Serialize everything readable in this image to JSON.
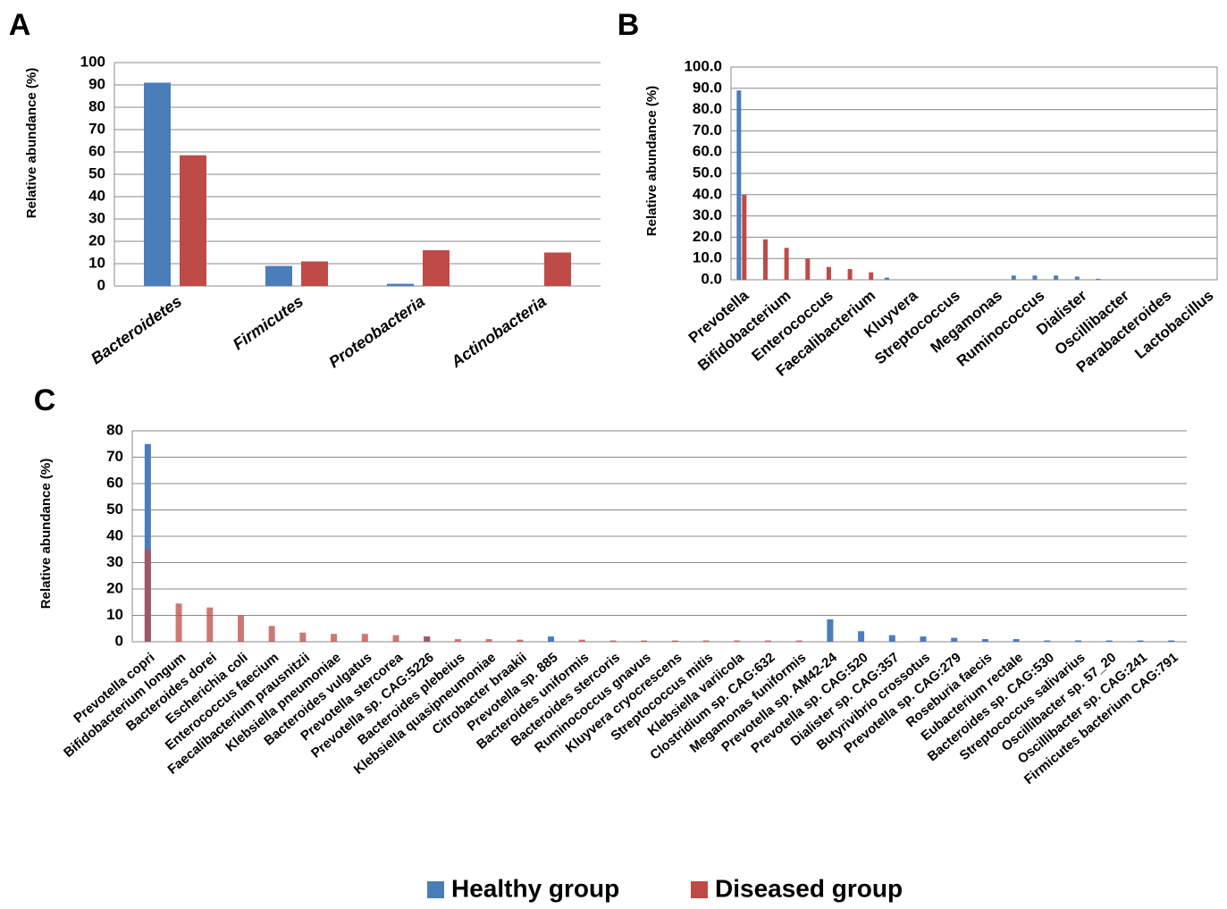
{
  "chart_data": [
    {
      "type": "bar",
      "panel": "A",
      "y_label": "Relative abundance (%)",
      "bar_mode": "grouped",
      "label_style": "italic",
      "categories": [
        "Bacteroidetes",
        "Firmicutes",
        "Proteobacteria",
        "Actinobacteria"
      ],
      "series": [
        {
          "name": "Healthy group",
          "color": "#4a7ebb",
          "values": [
            91,
            9,
            1,
            0
          ]
        },
        {
          "name": "Diseased group",
          "color": "#be4b48",
          "values": [
            58.5,
            11,
            16,
            15
          ]
        }
      ],
      "ylim": [
        0,
        100
      ],
      "yticks": [
        0,
        10,
        20,
        30,
        40,
        50,
        60,
        70,
        80,
        90,
        100
      ],
      "grid": true
    },
    {
      "type": "bar",
      "panel": "B",
      "y_label": "Relative abundance (%)",
      "bar_mode": "grouped",
      "label_style": "normal",
      "categories": [
        "Prevotella",
        null,
        "Bifidobacterium",
        null,
        "Enterococcus",
        null,
        "Faecalibacterium",
        null,
        "Kluyvera",
        null,
        "Streptococcus",
        null,
        "Megamonas",
        null,
        "Ruminococcus",
        null,
        "Dialister",
        null,
        "Oscillibacter",
        null,
        "Parabacteroides",
        null,
        "Lactobacillus"
      ],
      "series": [
        {
          "color": "#4a7ebb",
          "values": [
            89,
            0,
            0,
            0,
            0,
            0,
            0,
            1,
            0,
            0,
            0,
            0,
            0,
            2,
            2,
            2,
            1.5,
            0.5,
            0,
            0,
            0,
            0,
            0
          ]
        },
        {
          "color": "#be4b48",
          "values": [
            40,
            19,
            15,
            10,
            6,
            5,
            3.5,
            0,
            0,
            0,
            0,
            0,
            0,
            0,
            0,
            0,
            0,
            0,
            0,
            0,
            0,
            0,
            0
          ]
        }
      ],
      "ylim": [
        0,
        100
      ],
      "yticks": [
        {
          "value": 0,
          "label": "0.0"
        },
        {
          "value": 10,
          "label": "10.0"
        },
        {
          "value": 20,
          "label": "20.0"
        },
        {
          "value": 30,
          "label": "30.0"
        },
        {
          "value": 40,
          "label": "40.0"
        },
        {
          "value": 50,
          "label": "50.0"
        },
        {
          "value": 60,
          "label": "60.0"
        },
        {
          "value": 70,
          "label": "70.0"
        },
        {
          "value": 80,
          "label": "80.0"
        },
        {
          "value": 90,
          "label": "90.0"
        },
        {
          "value": 100,
          "label": "100.0"
        }
      ],
      "grid": true
    },
    {
      "type": "bar",
      "panel": "C",
      "y_label": "Relative abundance (%)",
      "bar_mode": "overlap",
      "label_style": "normal",
      "categories": [
        "Prevotella copri",
        "Bifidobacterium longum",
        "Bacteroides dorei",
        "Escherichia coli",
        "Enterococcus faecium",
        "Faecalibacterium prausnitzii",
        "Klebsiella pneumoniae",
        "Bacteroides vulgatus",
        "Prevotella stercorea",
        "Prevotella sp. CAG:5226",
        "Bacteroides plebeius",
        "Klebsiella quasipneumoniae",
        "Citrobacter braakii",
        "Prevotella sp. 885",
        "Bacteroides uniformis",
        "Bacteroides stercoris",
        "Ruminococcus gnavus",
        "Kluyvera cryocrescens",
        "Streptococcus mitis",
        "Klebsiella variicola",
        "Clostridium sp. CAG:632",
        "Megamonas funiformis",
        "Prevotella sp. AM42-24",
        "Prevotella sp. CAG:520",
        "Dialister sp. CAG:357",
        "Butyrivibrio crossotus",
        "Prevotella sp. CAG:279",
        "Roseburia faecis",
        "Eubacterium rectale",
        "Bacteroides sp. CAG:530",
        "Streptococcus salivarius",
        "Oscillibacter sp. 57_20",
        "Oscillibacter sp. CAG:241",
        "Firmicutes bacterium CAG:791"
      ],
      "series": [
        {
          "color": "#4a7ebb",
          "values": [
            75,
            0,
            0,
            0,
            0,
            0,
            0,
            0,
            0,
            2,
            0,
            0,
            0,
            2,
            0,
            0,
            0,
            0,
            0,
            0,
            0,
            0,
            8.5,
            4,
            2.5,
            2,
            1.5,
            1,
            1,
            0.5,
            0.5,
            0.5,
            0.5,
            0.5
          ]
        },
        {
          "color": "#be4b48",
          "values": [
            35,
            14.5,
            13,
            10,
            6,
            3.5,
            3,
            3,
            2.5,
            2,
            1,
            1,
            0.8,
            0,
            0.8,
            0.5,
            0.5,
            0.5,
            0.5,
            0.5,
            0.5,
            0.5,
            0,
            0,
            0,
            0,
            0,
            0,
            0,
            0,
            0,
            0,
            0,
            0
          ]
        }
      ],
      "ylim": [
        0,
        80
      ],
      "yticks": [
        0,
        10,
        20,
        30,
        40,
        50,
        60,
        70,
        80
      ],
      "grid": true
    }
  ]
}
